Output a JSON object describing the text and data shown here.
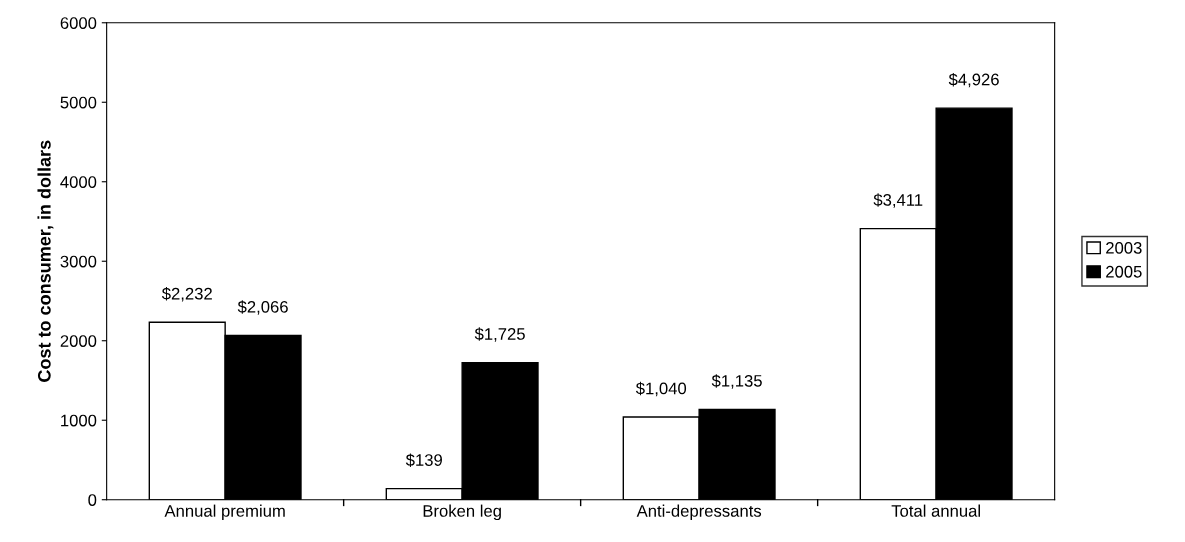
{
  "chart_data": {
    "type": "bar",
    "ylabel": "Cost to consumer, in dollars",
    "categories": [
      "Annual premium",
      "Broken leg",
      "Anti-depressants",
      "Total annual"
    ],
    "series": [
      {
        "name": "2003",
        "color": "#ffffff",
        "values": [
          2232,
          139,
          1040,
          3411
        ],
        "value_labels": [
          "$2,232",
          "$139",
          "$1,040",
          "$3,411"
        ]
      },
      {
        "name": "2005",
        "color": "#000000",
        "values": [
          2066,
          1725,
          1135,
          4926
        ],
        "value_labels": [
          "$2,066",
          "$1,725",
          "$1,135",
          "$4,926"
        ]
      }
    ],
    "ylim": [
      0,
      6000
    ],
    "yticks": [
      0,
      1000,
      2000,
      3000,
      4000,
      5000,
      6000
    ],
    "grid": false,
    "legend": "right"
  }
}
